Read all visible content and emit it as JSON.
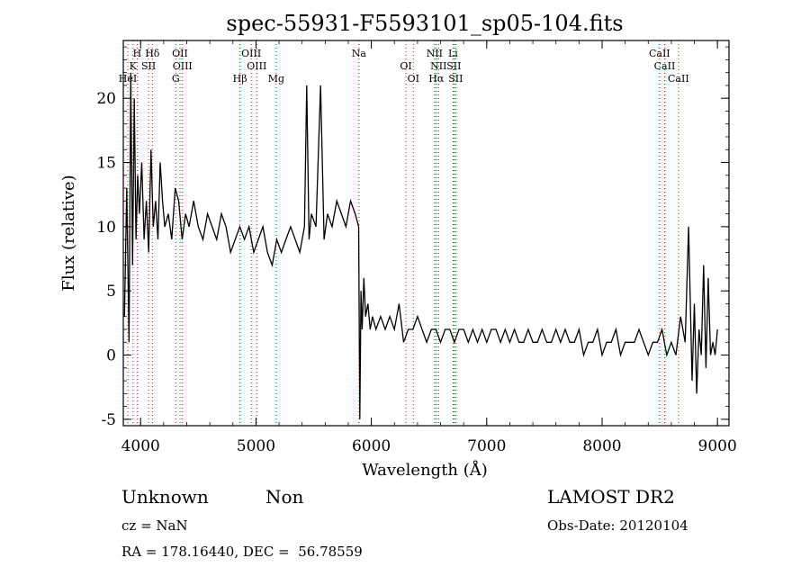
{
  "chart_data": {
    "type": "line",
    "title": "spec-55931-F5593101_sp05-104.fits",
    "xlabel": "Wavelength (Å)",
    "ylabel": "Flux (relative)",
    "xlim": [
      3850,
      9100
    ],
    "ylim": [
      -5.5,
      24.5
    ],
    "xticks": [
      4000,
      5000,
      6000,
      7000,
      8000,
      9000
    ],
    "yticks": [
      -5,
      0,
      5,
      10,
      15,
      20
    ],
    "grid": false,
    "line_color": "#000000",
    "marker_color": "#ff0000",
    "series": [
      {
        "values_note": "",
        "x": [
          3860,
          3880,
          3900,
          3915,
          3930,
          3945,
          3960,
          3975,
          3990,
          4010,
          4030,
          4050,
          4070,
          4090,
          4110,
          4130,
          4150,
          4170,
          4190,
          4210,
          4240,
          4270,
          4300,
          4330,
          4360,
          4390,
          4420,
          4460,
          4500,
          4540,
          4580,
          4620,
          4660,
          4700,
          4740,
          4780,
          4820,
          4860,
          4900,
          4940,
          4980,
          5020,
          5060,
          5100,
          5140,
          5180,
          5220,
          5260,
          5300,
          5340,
          5380,
          5420,
          5440,
          5460,
          5480,
          5520,
          5560,
          5590,
          5620,
          5660,
          5700,
          5740,
          5780,
          5820,
          5860,
          5890,
          5900,
          5910,
          5920,
          5935,
          5950,
          5970,
          5990,
          6010,
          6040,
          6080,
          6120,
          6160,
          6200,
          6240,
          6280,
          6320,
          6360,
          6400,
          6440,
          6480,
          6520,
          6560,
          6600,
          6640,
          6680,
          6720,
          6760,
          6800,
          6840,
          6880,
          6920,
          6960,
          7000,
          7040,
          7080,
          7120,
          7160,
          7200,
          7240,
          7280,
          7320,
          7360,
          7400,
          7440,
          7480,
          7520,
          7560,
          7600,
          7640,
          7680,
          7720,
          7760,
          7800,
          7840,
          7880,
          7920,
          7960,
          8000,
          8040,
          8080,
          8120,
          8160,
          8200,
          8240,
          8280,
          8320,
          8360,
          8400,
          8440,
          8480,
          8520,
          8560,
          8600,
          8640,
          8680,
          8720,
          8750,
          8780,
          8800,
          8820,
          8840,
          8860,
          8880,
          8900,
          8920,
          8940,
          8960,
          8980,
          9000
        ],
        "y": [
          3,
          13,
          1,
          22,
          7,
          20,
          9,
          14,
          11,
          15,
          9,
          12,
          8,
          16,
          10,
          12,
          9,
          15,
          12,
          10,
          11,
          9,
          13,
          12,
          9,
          11,
          10,
          12,
          10,
          9,
          11,
          10,
          9,
          11,
          10,
          8,
          9,
          10,
          9,
          10,
          8,
          9,
          10,
          8,
          7,
          9,
          8,
          9,
          10,
          9,
          8,
          10,
          21,
          9,
          11,
          10,
          21,
          9,
          11,
          10,
          12,
          11,
          10,
          12,
          11,
          10,
          -5,
          5,
          2,
          6,
          3,
          4,
          2,
          3,
          2,
          3,
          2,
          3,
          2,
          4,
          1,
          2,
          2,
          3,
          2,
          1,
          2,
          2,
          1,
          2,
          2,
          1,
          2,
          2,
          1,
          2,
          1,
          2,
          1,
          2,
          2,
          1,
          2,
          1,
          2,
          1,
          1,
          2,
          1,
          1,
          2,
          1,
          1,
          2,
          1,
          2,
          1,
          1,
          2,
          0,
          1,
          1,
          2,
          0,
          1,
          1,
          2,
          0,
          1,
          1,
          1,
          2,
          1,
          0,
          1,
          1,
          2,
          0,
          1,
          0,
          3,
          1,
          10,
          -2,
          4,
          -3,
          2,
          0,
          7,
          -1,
          6,
          0,
          1,
          0,
          2
        ]
      }
    ],
    "lines": [
      {
        "label": "H",
        "x": 3970
      },
      {
        "label": "K",
        "x": 3934
      },
      {
        "label": "He I",
        "x": 3889
      },
      {
        "label": "Hδ",
        "x": 4102
      },
      {
        "label": "S II",
        "x": 4069
      },
      {
        "label": "G",
        "x": 4305
      },
      {
        "label": "O II",
        "x": 4341
      },
      {
        "label": "O III",
        "x": 4363
      },
      {
        "label": "Hβ",
        "x": 4861
      },
      {
        "label": "O III",
        "x": 4959
      },
      {
        "label": "O III",
        "x": 5007
      },
      {
        "label": "Mg",
        "x": 5175
      },
      {
        "label": "Na",
        "x": 5893
      },
      {
        "label": "O I",
        "x": 6300
      },
      {
        "label": "O I",
        "x": 6364
      },
      {
        "label": "N II",
        "x": 6548
      },
      {
        "label": "N II",
        "x": 6583
      },
      {
        "label": "Hα",
        "x": 6563
      },
      {
        "label": "Li",
        "x": 6708
      },
      {
        "label": "S II",
        "x": 6716
      },
      {
        "label": "S II",
        "x": 6731
      },
      {
        "label": "Ca II",
        "x": 8498
      },
      {
        "label": "Ca II",
        "x": 8542
      },
      {
        "label": "Ca II",
        "x": 8662
      }
    ]
  },
  "info": {
    "class": "Unknown",
    "subclass": "Non",
    "cz": "cz = NaN",
    "coords": "RA = 178.16440, DEC =  56.78559",
    "survey": "LAMOST DR2",
    "obsdate": "Obs-Date: 20120104"
  }
}
